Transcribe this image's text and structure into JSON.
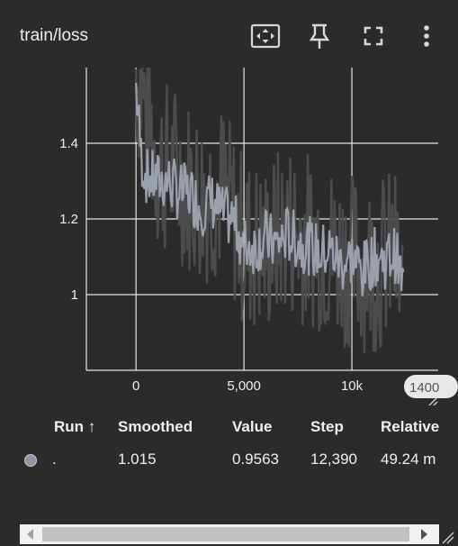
{
  "card": {
    "title": "train/loss",
    "tools": {
      "fit_icon": "fit-domain-icon",
      "pin_icon": "pin-icon",
      "fullscreen_icon": "fullscreen-icon",
      "more_icon": "more-vert-icon"
    }
  },
  "chart_data": {
    "type": "line",
    "title": "",
    "xlabel": "",
    "ylabel": "",
    "xlim": [
      -2300,
      14000
    ],
    "ylim": [
      0.8,
      1.6
    ],
    "x_ticks": [
      "0",
      "5,000",
      "10k"
    ],
    "y_ticks": [
      "1",
      "1.2",
      "1.4"
    ],
    "hover_x_label": "1400",
    "grid": true,
    "series": [
      {
        "color": "#4c4c4c",
        "approx_x_range": [
          0,
          12390
        ],
        "approx_y_range": [
          0.8,
          1.6
        ],
        "approx_values": [
          [
            0,
            1.6
          ],
          [
            1000,
            1.35
          ],
          [
            2000,
            1.32
          ],
          [
            3000,
            1.26
          ],
          [
            4000,
            1.28
          ],
          [
            5000,
            1.14
          ],
          [
            6000,
            1.12
          ],
          [
            7000,
            1.18
          ],
          [
            8000,
            1.15
          ],
          [
            9000,
            1.12
          ],
          [
            10000,
            1.09
          ],
          [
            11000,
            1.08
          ],
          [
            12000,
            1.1
          ],
          [
            12390,
            0.96
          ]
        ]
      },
      {
        "color": "#9aa1ac",
        "approx_values": [
          [
            0,
            1.55
          ],
          [
            250,
            1.36
          ],
          [
            500,
            1.31
          ],
          [
            1000,
            1.3
          ],
          [
            1500,
            1.3
          ],
          [
            2000,
            1.27
          ],
          [
            2500,
            1.27
          ],
          [
            3000,
            1.23
          ],
          [
            3500,
            1.25
          ],
          [
            4000,
            1.21
          ],
          [
            4500,
            1.2
          ],
          [
            5000,
            1.13
          ],
          [
            5500,
            1.13
          ],
          [
            6000,
            1.15
          ],
          [
            6500,
            1.13
          ],
          [
            7000,
            1.16
          ],
          [
            7500,
            1.14
          ],
          [
            8000,
            1.13
          ],
          [
            8500,
            1.11
          ],
          [
            9000,
            1.12
          ],
          [
            9500,
            1.08
          ],
          [
            10000,
            1.1
          ],
          [
            10500,
            1.06
          ],
          [
            11000,
            1.1
          ],
          [
            11500,
            1.09
          ],
          [
            12000,
            1.11
          ],
          [
            12390,
            1.02
          ]
        ]
      }
    ]
  },
  "table": {
    "headers": {
      "run": "Run ↑",
      "smoothed": "Smoothed",
      "value": "Value",
      "step": "Step",
      "relative": "Relative"
    },
    "rows": [
      {
        "run_color": "#8e96a3",
        "run": ".",
        "smoothed": "1.015",
        "value": "0.9563",
        "step": "12,390",
        "relative": "49.24 m"
      }
    ]
  },
  "colors": {
    "background": "#2b2b2b",
    "grid": "#e6e6e6",
    "raw_series": "#4c4c4c",
    "smoothed_series": "#9aa1ac"
  }
}
